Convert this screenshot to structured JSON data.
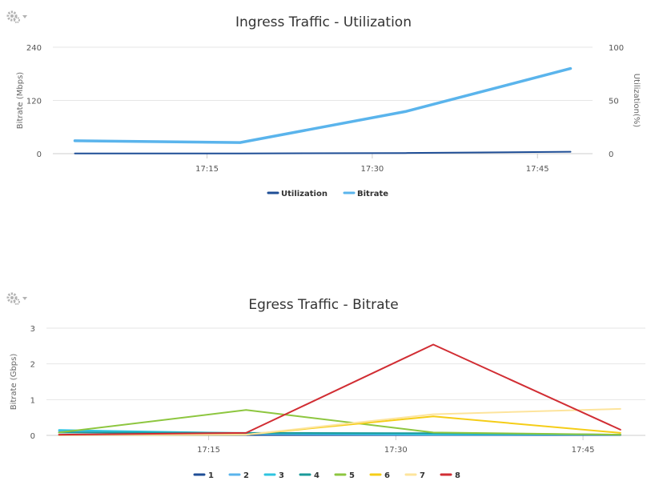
{
  "toolbar_icon": "gear-dropdown-icon",
  "chart_data": [
    {
      "id": "ingress",
      "type": "line",
      "title": "Ingress Traffic - Utilization",
      "ylabel": "Bitrate (Mbps)",
      "y2label": "Utilization(%)",
      "ylim": [
        0,
        240
      ],
      "y2lim": [
        0,
        100
      ],
      "y_ticks": [
        "0",
        "120",
        "240"
      ],
      "y2_ticks": [
        "0",
        "50",
        "100"
      ],
      "x_ticks": [
        "17:15",
        "17:30",
        "17:45"
      ],
      "grid": true,
      "legend_position": "bottom",
      "series": [
        {
          "name": "Utilization",
          "axis": "y2",
          "color": "#1f4e96",
          "width": 2,
          "x": [
            "17:03",
            "17:18",
            "17:33",
            "17:48"
          ],
          "values": [
            0.2,
            0.2,
            0.6,
            1.8
          ]
        },
        {
          "name": "Bitrate",
          "axis": "y",
          "color": "#5ab4ec",
          "width": 3.5,
          "x": [
            "17:03",
            "17:18",
            "17:33",
            "17:48"
          ],
          "values": [
            29,
            25,
            95,
            192
          ]
        }
      ]
    },
    {
      "id": "egress",
      "type": "line",
      "title": "Egress Traffic - Bitrate",
      "ylabel": "Bitrate (Gbps)",
      "ylim": [
        0,
        3
      ],
      "y_ticks": [
        "0",
        "1",
        "2",
        "3"
      ],
      "x_ticks": [
        "17:15",
        "17:30",
        "17:45"
      ],
      "grid": true,
      "legend_position": "bottom",
      "series": [
        {
          "name": "1",
          "color": "#1f4e96",
          "x": [
            "17:03",
            "17:18",
            "17:33",
            "17:48"
          ],
          "values": [
            0.01,
            0.01,
            0.01,
            0.01
          ]
        },
        {
          "name": "2",
          "color": "#5ab4ec",
          "x": [
            "17:03",
            "17:18",
            "17:33",
            "17:48"
          ],
          "values": [
            0.12,
            0.04,
            0.02,
            0.02
          ]
        },
        {
          "name": "3",
          "color": "#2ec4e0",
          "x": [
            "17:03",
            "17:18",
            "17:33",
            "17:48"
          ],
          "values": [
            0.15,
            0.06,
            0.03,
            0.02
          ]
        },
        {
          "name": "4",
          "color": "#1a9a9a",
          "x": [
            "17:03",
            "17:18",
            "17:33",
            "17:48"
          ],
          "values": [
            0.08,
            0.07,
            0.06,
            0.02
          ]
        },
        {
          "name": "5",
          "color": "#8dc63f",
          "x": [
            "17:03",
            "17:18",
            "17:33",
            "17:48"
          ],
          "values": [
            0.08,
            0.71,
            0.08,
            0.02
          ]
        },
        {
          "name": "6",
          "color": "#f5cd17",
          "x": [
            "17:03",
            "17:18",
            "17:33",
            "17:48"
          ],
          "values": [
            0.01,
            0.02,
            0.53,
            0.07
          ]
        },
        {
          "name": "7",
          "color": "#fde49c",
          "x": [
            "17:03",
            "17:18",
            "17:33",
            "17:48"
          ],
          "values": [
            0.01,
            0.02,
            0.59,
            0.74
          ]
        },
        {
          "name": "8",
          "color": "#d12d33",
          "x": [
            "17:03",
            "17:18",
            "17:33",
            "17:48"
          ],
          "values": [
            0.02,
            0.07,
            2.54,
            0.16
          ]
        }
      ]
    }
  ]
}
